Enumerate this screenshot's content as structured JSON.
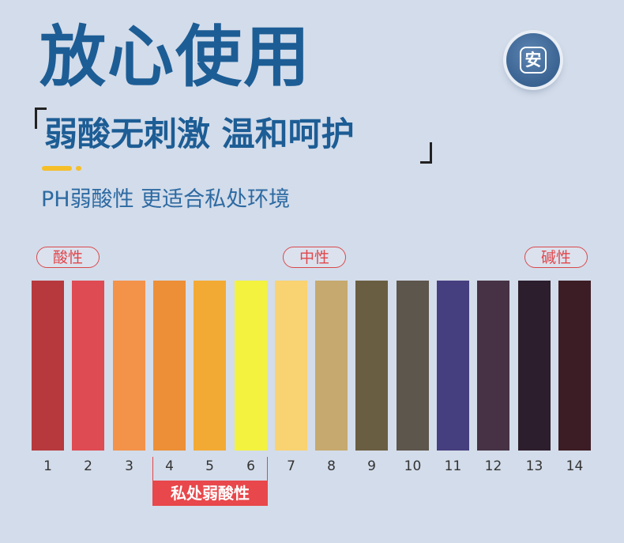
{
  "header": {
    "title": "放心使用",
    "subtitle": "弱酸无刺激 温和呵护",
    "tagline": "PH弱酸性 更适合私处环境",
    "badge_char": "安"
  },
  "scale": {
    "labels": {
      "acid": "酸性",
      "neutral": "中性",
      "alkaline": "碱性"
    },
    "strips": [
      {
        "value": "1",
        "color": "#b7393d"
      },
      {
        "value": "2",
        "color": "#de4b52"
      },
      {
        "value": "3",
        "color": "#f39249"
      },
      {
        "value": "4",
        "color": "#ec8f36"
      },
      {
        "value": "5",
        "color": "#f3aa34"
      },
      {
        "value": "6",
        "color": "#f3f23f"
      },
      {
        "value": "7",
        "color": "#f9d271"
      },
      {
        "value": "8",
        "color": "#c6a96e"
      },
      {
        "value": "9",
        "color": "#6a5e42"
      },
      {
        "value": "10",
        "color": "#5d564c"
      },
      {
        "value": "11",
        "color": "#463f7f"
      },
      {
        "value": "12",
        "color": "#463244"
      },
      {
        "value": "13",
        "color": "#2d1e2d"
      },
      {
        "value": "14",
        "color": "#3d1d25"
      }
    ],
    "highlight_label": "私处弱酸性"
  }
}
